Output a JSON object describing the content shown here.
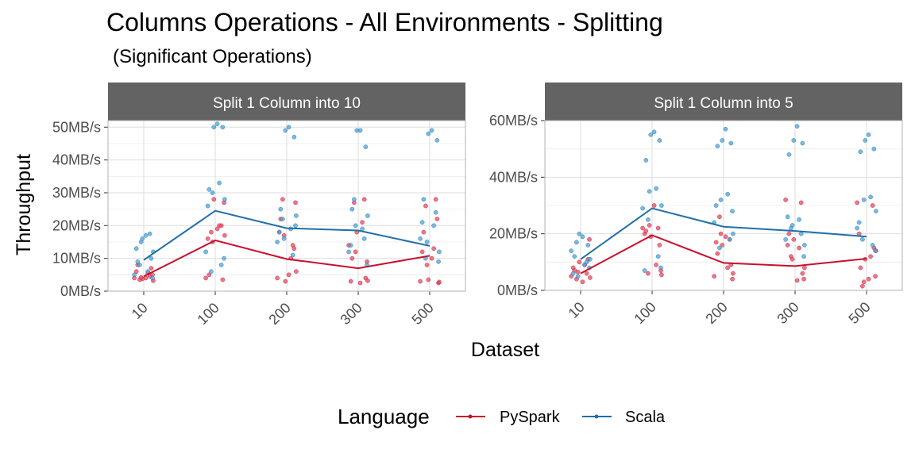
{
  "chart_data": {
    "type": "line",
    "title": "Columns Operations - All Environments - Splitting",
    "subtitle": "(Significant Operations)",
    "xlabel": "Dataset",
    "ylabel": "Throughput",
    "legend": {
      "title": "Language",
      "position": "bottom",
      "entries": [
        "PySpark",
        "Scala"
      ]
    },
    "colors": {
      "PySpark": "#c8102e",
      "Scala": "#1f6fa8",
      "PySpark_points": "#e34a61",
      "Scala_points": "#4aa3d9",
      "strip": "#636363"
    },
    "categories": [
      "10",
      "100",
      "200",
      "300",
      "500"
    ],
    "grid": true,
    "panels": [
      {
        "strip": "Split 1 Column into 10",
        "y_unit_suffix": "MB/s",
        "ylim": [
          0,
          52
        ],
        "yticks": [
          0,
          10,
          20,
          30,
          40,
          50
        ],
        "ytick_labels": [
          "0MB/s",
          "10MB/s",
          "20MB/s",
          "30MB/s",
          "40MB/s",
          "50MB/s"
        ],
        "series": [
          {
            "name": "PySpark",
            "mean_values": [
              4.5,
              15.5,
              9.8,
              7.0,
              10.8
            ]
          },
          {
            "name": "Scala",
            "mean_values": [
              9.5,
              24.5,
              19.2,
              18.5,
              13.8
            ]
          }
        ],
        "points": {
          "PySpark": [
            [
              4,
              4.5,
              3.5,
              5,
              6,
              4,
              3.8,
              7,
              8,
              5.5,
              4.2,
              3.2
            ],
            [
              4,
              20,
              18,
              27,
              16,
              19,
              28,
              3.5,
              5,
              20,
              15,
              17
            ],
            [
              4,
              14,
              28,
              27,
              18,
              5,
              3,
              13,
              22,
              10,
              17,
              6
            ],
            [
              14,
              28,
              27,
              9,
              3,
              2.5,
              18,
              4,
              10,
              21,
              12,
              3.2
            ],
            [
              3,
              28,
              26,
              2.5,
              12,
              10,
              3.5,
              22,
              18,
              13,
              8,
              2.8
            ]
          ],
          "Scala": [
            [
              17,
              16,
              10,
              9,
              6,
              15,
              12,
              5,
              17.5,
              8,
              4,
              13
            ],
            [
              51,
              50,
              50,
              31,
              33,
              30,
              28,
              12,
              8,
              6,
              10,
              26
            ],
            [
              50,
              49,
              47,
              25,
              19,
              16,
              23,
              15,
              11,
              22,
              20,
              18
            ],
            [
              49,
              49,
              44,
              25,
              19,
              20,
              23,
              12,
              16,
              28,
              8,
              14
            ],
            [
              49,
              48,
              46,
              28,
              20,
              15,
              12,
              16,
              24,
              10,
              9,
              21
            ]
          ]
        }
      },
      {
        "strip": "Split 1 Column into 5",
        "y_unit_suffix": "MB/s",
        "ylim": [
          0,
          60
        ],
        "yticks": [
          0,
          20,
          40,
          60
        ],
        "ytick_labels": [
          "0MB/s",
          "20MB/s",
          "40MB/s",
          "60MB/s"
        ],
        "series": [
          {
            "name": "PySpark",
            "mean_values": [
              6,
              19.5,
              9.7,
              8.6,
              11.2
            ]
          },
          {
            "name": "Scala",
            "mean_values": [
              11,
              29,
              22.5,
              21,
              19
            ]
          }
        ],
        "points": {
          "PySpark": [
            [
              5,
              6,
              4,
              18,
              8,
              3,
              10,
              11,
              7,
              9,
              6.5,
              4.5
            ],
            [
              22,
              22,
              6,
              7,
              20,
              30,
              19,
              16,
              21,
              9,
              23,
              5.5
            ],
            [
              5,
              18,
              26,
              4,
              17,
              19,
              16,
              9,
              13,
              8,
              20,
              6
            ],
            [
              32,
              31,
              12,
              4,
              16,
              3.5,
              18,
              6,
              20,
              15,
              11,
              8
            ],
            [
              31,
              30,
              1.5,
              5,
              20,
              4,
              11,
              15,
              8,
              12,
              3,
              14
            ]
          ],
          "Scala": [
            [
              19,
              20,
              16,
              12,
              9,
              5,
              11,
              14,
              10,
              17,
              8,
              6
            ],
            [
              56,
              55,
              53,
              46,
              36,
              35,
              30,
              29,
              12,
              25,
              8,
              7
            ],
            [
              57,
              53,
              52,
              51,
              34,
              32,
              20,
              24,
              18,
              15,
              28,
              30
            ],
            [
              58,
              53,
              52,
              48,
              25,
              23,
              16,
              18,
              20,
              22,
              12,
              26
            ],
            [
              55,
              53,
              50,
              49,
              33,
              32,
              28,
              22,
              16,
              18,
              14,
              24
            ]
          ]
        }
      }
    ]
  }
}
